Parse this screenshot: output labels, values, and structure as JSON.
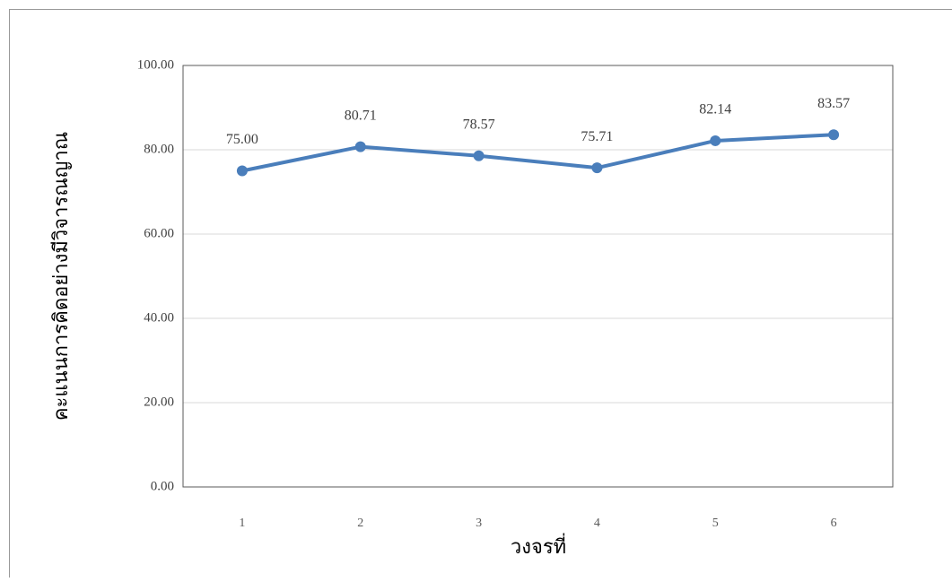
{
  "chart_data": {
    "type": "line",
    "x_label": "วงจรที่",
    "y_label": "คะแนนการคิดอย่างมีวิจารณญาณ",
    "categories": [
      "1",
      "2",
      "3",
      "4",
      "5",
      "6"
    ],
    "series": [
      {
        "name": "คะแนนการคิดอย่างมีวิจารณญาณ",
        "color": "#4a7ebb",
        "values": [
          75.0,
          80.71,
          78.57,
          75.71,
          82.14,
          83.57
        ],
        "value_labels": [
          "75.00",
          "80.71",
          "78.57",
          "75.71",
          "82.14",
          "83.57"
        ]
      }
    ],
    "ylim": [
      0,
      100
    ],
    "yticks": [
      {
        "value": 0,
        "label": "0.00"
      },
      {
        "value": 20,
        "label": "20.00"
      },
      {
        "value": 40,
        "label": "40.00"
      },
      {
        "value": 60,
        "label": "60.00"
      },
      {
        "value": 80,
        "label": "80.00"
      },
      {
        "value": 100,
        "label": "100.00"
      }
    ],
    "grid": true
  }
}
